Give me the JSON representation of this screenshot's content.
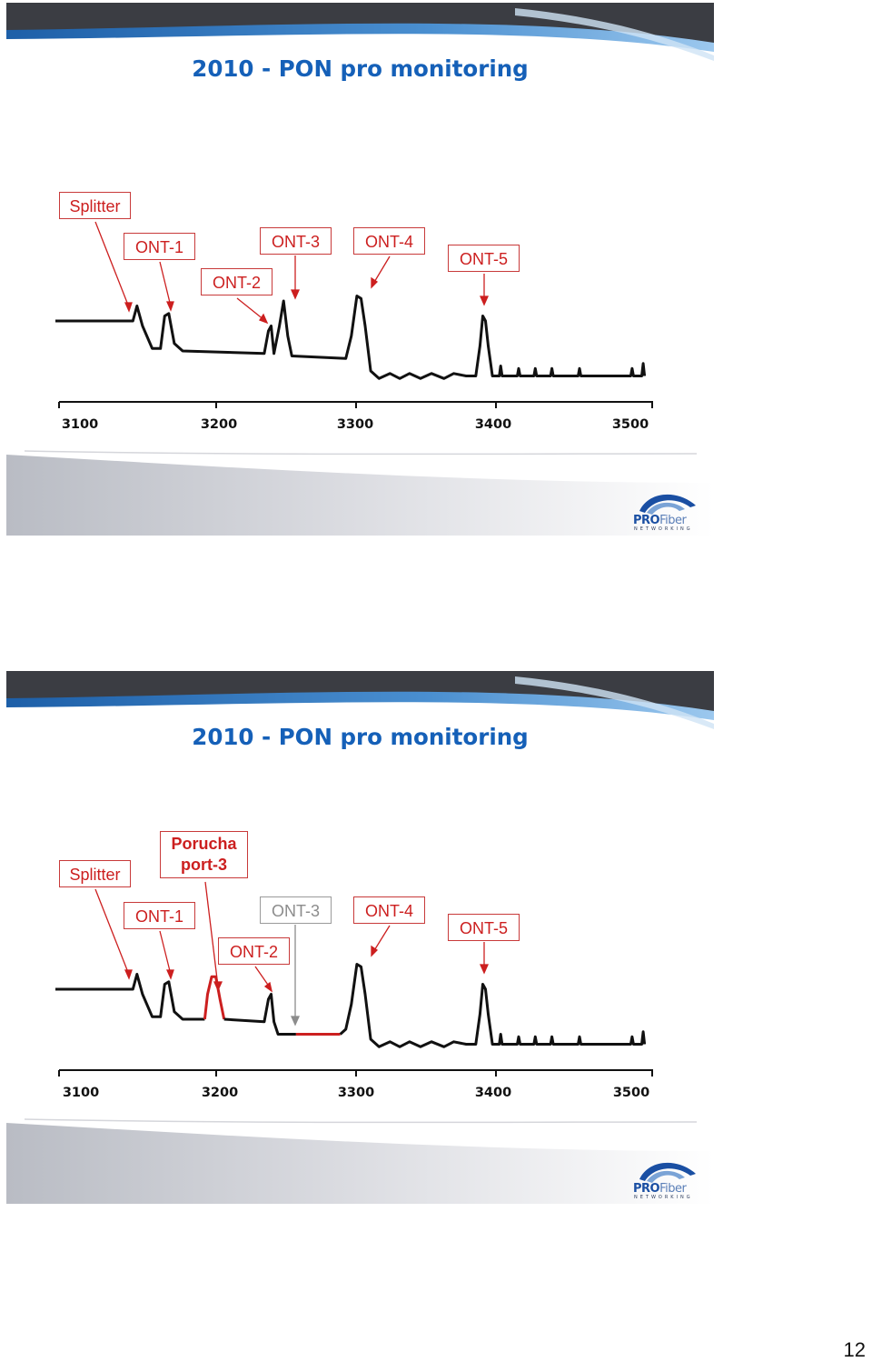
{
  "slides": [
    {
      "title": "2010 - PON pro monitoring",
      "labels": {
        "splitter": "Splitter",
        "ont1": "ONT-1",
        "ont2": "ONT-2",
        "ont3": "ONT-3",
        "ont4": "ONT-4",
        "ont5": "ONT-5"
      },
      "chart_data": {
        "type": "line",
        "x_ticks": [
          "3100",
          "3200",
          "3300",
          "3400",
          "3500"
        ],
        "xlim": [
          3085,
          3515
        ],
        "series": [
          {
            "values": [
              [
                3084,
                0
              ],
              [
                3140,
                0
              ],
              [
                3143,
                0.3
              ],
              [
                3147,
                -0.1
              ],
              [
                3154,
                -0.55
              ],
              [
                3160,
                -0.55
              ],
              [
                3163,
                0.1
              ],
              [
                3166,
                0.15
              ],
              [
                3170,
                -0.45
              ],
              [
                3176,
                -0.6
              ],
              [
                3235,
                -0.65
              ],
              [
                3238,
                -0.2
              ],
              [
                3240,
                -0.1
              ],
              [
                3242,
                -0.65
              ],
              [
                3246,
                -0.1
              ],
              [
                3249,
                0.4
              ],
              [
                3252,
                -0.3
              ],
              [
                3255,
                -0.7
              ],
              [
                3294,
                -0.75
              ],
              [
                3298,
                -0.3
              ],
              [
                3302,
                0.5
              ],
              [
                3305,
                0.45
              ],
              [
                3308,
                -0.1
              ],
              [
                3312,
                -1.0
              ],
              [
                3318,
                -1.15
              ],
              [
                3326,
                -1.05
              ],
              [
                3333,
                -1.15
              ],
              [
                3340,
                -1.05
              ],
              [
                3348,
                -1.15
              ],
              [
                3356,
                -1.05
              ],
              [
                3365,
                -1.15
              ],
              [
                3372,
                -1.05
              ],
              [
                3381,
                -1.1
              ],
              [
                3388,
                -1.1
              ],
              [
                3391,
                -0.5
              ],
              [
                3393,
                0.1
              ],
              [
                3395,
                0.0
              ],
              [
                3397,
                -0.5
              ],
              [
                3400,
                -1.1
              ],
              [
                3405,
                -1.1
              ],
              [
                3406,
                -0.9
              ],
              [
                3407,
                -1.1
              ],
              [
                3418,
                -1.1
              ],
              [
                3419,
                -0.95
              ],
              [
                3420,
                -1.1
              ],
              [
                3430,
                -1.1
              ],
              [
                3431,
                -0.95
              ],
              [
                3432,
                -1.1
              ],
              [
                3442,
                -1.1
              ],
              [
                3443,
                -0.95
              ],
              [
                3444,
                -1.1
              ],
              [
                3462,
                -1.1
              ],
              [
                3463,
                -0.95
              ],
              [
                3464,
                -1.1
              ],
              [
                3500,
                -1.1
              ],
              [
                3501,
                -0.95
              ],
              [
                3502,
                -1.1
              ],
              [
                3508,
                -1.1
              ],
              [
                3509,
                -0.85
              ],
              [
                3510,
                -1.1
              ]
            ]
          }
        ]
      }
    },
    {
      "title": "2010 - PON pro monitoring",
      "labels": {
        "splitter": "Splitter",
        "porucha_line1": "Porucha",
        "porucha_line2": "port-3",
        "ont1": "ONT-1",
        "ont2": "ONT-2",
        "ont3": "ONT-3",
        "ont4": "ONT-4",
        "ont5": "ONT-5"
      },
      "colors": {
        "fault": "#cc1f1f",
        "faded": "#8c8c8c"
      },
      "chart_data": {
        "type": "line",
        "x_ticks": [
          "3100",
          "3200",
          "3300",
          "3400",
          "3500"
        ],
        "xlim": [
          3085,
          3515
        ],
        "series": [
          {
            "values": [
              [
                3084,
                0
              ],
              [
                3140,
                0
              ],
              [
                3143,
                0.3
              ],
              [
                3147,
                -0.1
              ],
              [
                3154,
                -0.55
              ],
              [
                3160,
                -0.55
              ],
              [
                3163,
                0.1
              ],
              [
                3166,
                0.15
              ],
              [
                3170,
                -0.45
              ],
              [
                3176,
                -0.6
              ],
              [
                3192,
                -0.6
              ]
            ]
          },
          {
            "values": [
              [
                3192,
                -0.6
              ],
              [
                3194,
                -0.1
              ],
              [
                3197,
                0.25
              ],
              [
                3200,
                0.25
              ],
              [
                3203,
                -0.2
              ],
              [
                3206,
                -0.6
              ]
            ]
          },
          {
            "values": [
              [
                3206,
                -0.6
              ],
              [
                3235,
                -0.65
              ],
              [
                3238,
                -0.2
              ],
              [
                3240,
                -0.1
              ],
              [
                3242,
                -0.65
              ],
              [
                3245,
                -0.9
              ],
              [
                3258,
                -0.9
              ]
            ]
          },
          {
            "values": [
              [
                3258,
                -0.9
              ],
              [
                3290,
                -0.9
              ]
            ]
          },
          {
            "values": [
              [
                3290,
                -0.9
              ],
              [
                3294,
                -0.8
              ],
              [
                3298,
                -0.3
              ],
              [
                3302,
                0.5
              ],
              [
                3305,
                0.45
              ],
              [
                3308,
                -0.1
              ],
              [
                3312,
                -1.0
              ],
              [
                3318,
                -1.15
              ],
              [
                3326,
                -1.05
              ],
              [
                3333,
                -1.15
              ],
              [
                3340,
                -1.05
              ],
              [
                3348,
                -1.15
              ],
              [
                3356,
                -1.05
              ],
              [
                3365,
                -1.15
              ],
              [
                3372,
                -1.05
              ],
              [
                3381,
                -1.1
              ],
              [
                3388,
                -1.1
              ],
              [
                3391,
                -0.5
              ],
              [
                3393,
                0.1
              ],
              [
                3395,
                0.0
              ],
              [
                3397,
                -0.5
              ],
              [
                3400,
                -1.1
              ],
              [
                3405,
                -1.1
              ],
              [
                3406,
                -0.9
              ],
              [
                3407,
                -1.1
              ],
              [
                3418,
                -1.1
              ],
              [
                3419,
                -0.95
              ],
              [
                3420,
                -1.1
              ],
              [
                3430,
                -1.1
              ],
              [
                3431,
                -0.95
              ],
              [
                3432,
                -1.1
              ],
              [
                3442,
                -1.1
              ],
              [
                3443,
                -0.95
              ],
              [
                3444,
                -1.1
              ],
              [
                3462,
                -1.1
              ],
              [
                3463,
                -0.95
              ],
              [
                3464,
                -1.1
              ],
              [
                3500,
                -1.1
              ],
              [
                3501,
                -0.95
              ],
              [
                3502,
                -1.1
              ],
              [
                3508,
                -1.1
              ],
              [
                3509,
                -0.85
              ],
              [
                3510,
                -1.1
              ]
            ]
          }
        ]
      }
    }
  ],
  "logo": {
    "brand_bold": "PRO",
    "brand_light": "Fiber",
    "tagline": "NETWORKING"
  },
  "page_number": "12"
}
